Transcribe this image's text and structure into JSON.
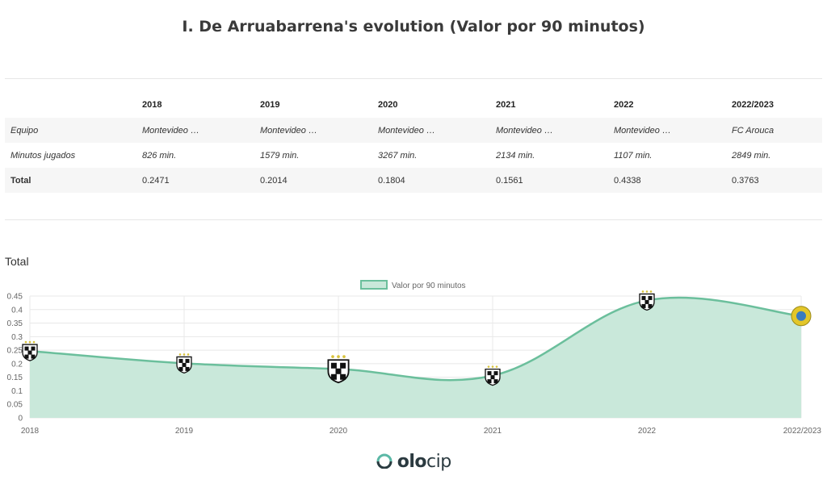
{
  "title": "I. De Arruabarrena's evolution (Valor por 90 minutos)",
  "table": {
    "headers": [
      "",
      "2018",
      "2019",
      "2020",
      "2021",
      "2022",
      "2022/2023"
    ],
    "rows": [
      {
        "label": "Equipo",
        "values": [
          "Montevideo …",
          "Montevideo …",
          "Montevideo …",
          "Montevideo …",
          "Montevideo …",
          "FC Arouca"
        ]
      },
      {
        "label": "Minutos jugados",
        "values": [
          "826 min.",
          "1579 min.",
          "3267 min.",
          "2134 min.",
          "1107 min.",
          "2849 min."
        ]
      },
      {
        "label": "Total",
        "values": [
          "0.2471",
          "0.2014",
          "0.1804",
          "0.1561",
          "0.4338",
          "0.3763"
        ]
      }
    ]
  },
  "section_label": "Total",
  "chart_data": {
    "type": "area",
    "categories": [
      "2018",
      "2019",
      "2020",
      "2021",
      "2022",
      "2022/2023"
    ],
    "series": [
      {
        "name": "Valor por 90 minutos",
        "values": [
          0.2471,
          0.2014,
          0.1804,
          0.1561,
          0.4338,
          0.3763
        ]
      }
    ],
    "ylim": [
      0,
      0.45
    ],
    "yticks": [
      "0",
      "0.05",
      "0.1",
      "0.15",
      "0.2",
      "0.25",
      "0.3",
      "0.35",
      "0.4",
      "0.45"
    ],
    "legend_position": "top-center",
    "grid": true,
    "line_color": "#6bbf9c",
    "fill_color": "#c9e8da"
  },
  "footer": {
    "brand_a": "olo",
    "brand_b": "cip"
  }
}
